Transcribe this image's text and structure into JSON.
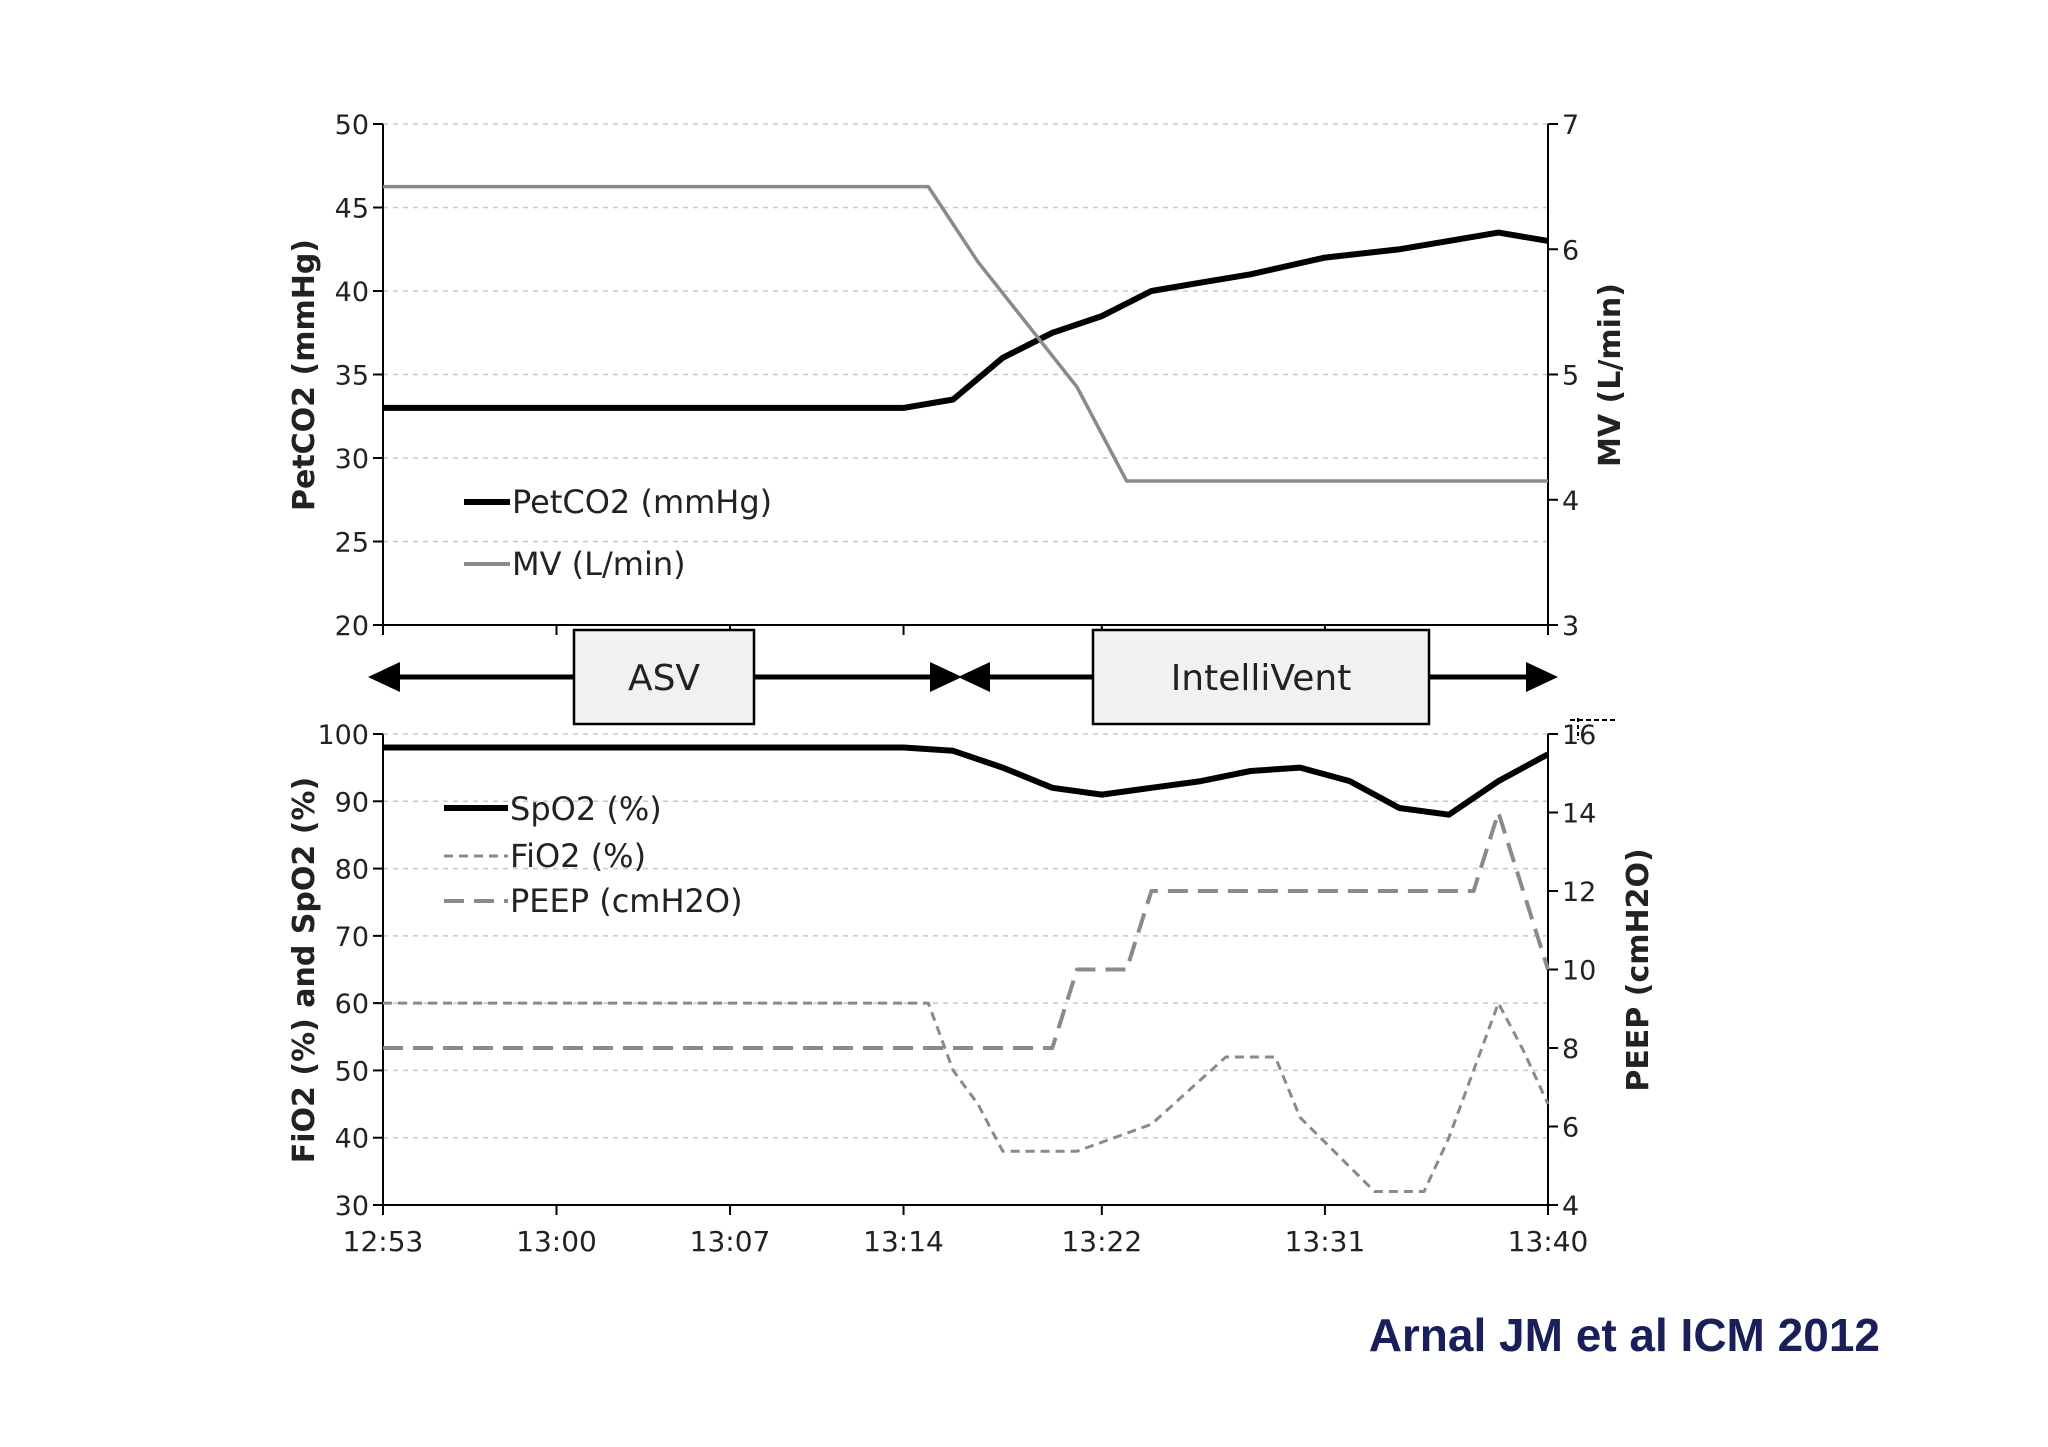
{
  "citation": "Arnal JM et al ICM 2012",
  "phases": [
    {
      "label": "ASV"
    },
    {
      "label": "IntelliVent"
    }
  ],
  "x_ticks": [
    "12:53",
    "13:00",
    "13:07",
    "13:14",
    "13:22",
    "13:31",
    "13:40"
  ],
  "chart_data": [
    {
      "type": "line",
      "panel": "top",
      "xlabel": "",
      "ylabel": "PetCO2 (mmHg)",
      "y2label": "MV (L/min)",
      "x_ticks": [
        "12:53",
        "13:00",
        "13:07",
        "13:14",
        "13:22",
        "13:31",
        "13:40"
      ],
      "xlim": [
        "12:53",
        "13:40"
      ],
      "ylim": [
        20,
        50
      ],
      "yticks": [
        20,
        25,
        30,
        35,
        40,
        45,
        50
      ],
      "y2lim": [
        3,
        7
      ],
      "y2ticks": [
        3,
        4,
        5,
        6,
        7
      ],
      "grid": "horizontal dashed",
      "legend_position": "bottom-left",
      "series": [
        {
          "name": "PetCO2 (mmHg)",
          "axis": "left",
          "color": "#000000",
          "style": "solid-thick",
          "x": [
            "12:53",
            "12:56",
            "13:00",
            "13:04",
            "13:07",
            "13:10",
            "13:14",
            "13:16",
            "13:18",
            "13:20",
            "13:22",
            "13:24",
            "13:26",
            "13:28",
            "13:31",
            "13:34",
            "13:36",
            "13:38",
            "13:40"
          ],
          "y": [
            33,
            33,
            33,
            33,
            33,
            33,
            33,
            33.5,
            36,
            37.5,
            38.5,
            40,
            40.5,
            41,
            42,
            42.5,
            43,
            43.5,
            43
          ]
        },
        {
          "name": "MV (L/min)",
          "axis": "right",
          "color": "#8a8a8a",
          "style": "solid",
          "x": [
            "12:53",
            "13:15",
            "13:17",
            "13:19",
            "13:21",
            "13:23",
            "13:40"
          ],
          "y": [
            6.5,
            6.5,
            5.9,
            5.4,
            4.9,
            4.15,
            4.15
          ]
        }
      ]
    },
    {
      "type": "line",
      "panel": "bottom",
      "xlabel": "",
      "ylabel": "FiO2 (%) and SpO2 (%)",
      "y2label": "PEEP (cmH2O)",
      "x_ticks": [
        "12:53",
        "13:00",
        "13:07",
        "13:14",
        "13:22",
        "13:31",
        "13:40"
      ],
      "xlim": [
        "12:53",
        "13:40"
      ],
      "ylim": [
        30,
        100
      ],
      "yticks": [
        30,
        40,
        50,
        60,
        70,
        80,
        90,
        100
      ],
      "y2lim": [
        4,
        16
      ],
      "y2ticks": [
        4,
        6,
        8,
        10,
        12,
        14,
        16
      ],
      "grid": "horizontal dashed",
      "legend_position": "top-left",
      "series": [
        {
          "name": "SpO2 (%)",
          "axis": "left",
          "color": "#000000",
          "style": "solid-thick",
          "x": [
            "12:53",
            "13:14",
            "13:16",
            "13:18",
            "13:20",
            "13:22",
            "13:24",
            "13:26",
            "13:28",
            "13:30",
            "13:32",
            "13:34",
            "13:36",
            "13:38",
            "13:40"
          ],
          "y": [
            98,
            98,
            97.5,
            95,
            92,
            91,
            92,
            93,
            94.5,
            95,
            93,
            89,
            88,
            93,
            97
          ]
        },
        {
          "name": "FiO2 (%)",
          "axis": "left",
          "color": "#8a8a8a",
          "style": "short-dash",
          "x": [
            "12:53",
            "13:15",
            "13:16",
            "13:17",
            "13:18",
            "13:21",
            "13:24",
            "13:27",
            "13:29",
            "13:30",
            "13:33",
            "13:35",
            "13:36",
            "13:37",
            "13:38",
            "13:39",
            "13:40"
          ],
          "y": [
            60,
            60,
            50,
            45,
            38,
            38,
            42,
            52,
            52,
            43,
            32,
            32,
            40,
            50,
            60,
            53,
            45
          ]
        },
        {
          "name": "PEEP (cmH2O)",
          "axis": "right",
          "color": "#8a8a8a",
          "style": "long-dash",
          "x": [
            "12:53",
            "13:20",
            "13:21",
            "13:23",
            "13:24",
            "13:37",
            "13:38",
            "13:39",
            "13:40"
          ],
          "y": [
            8,
            8,
            10,
            10,
            12,
            12,
            14,
            12,
            10
          ]
        }
      ]
    }
  ]
}
